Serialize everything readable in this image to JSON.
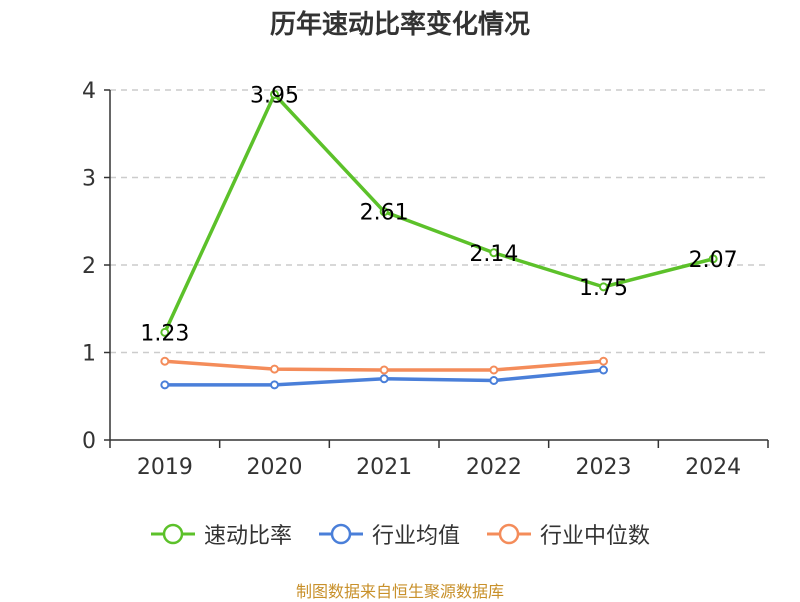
{
  "chart_data": {
    "type": "line",
    "title": "历年速动比率变化情况",
    "categories": [
      "2019",
      "2020",
      "2021",
      "2022",
      "2023",
      "2024"
    ],
    "ylim": [
      0,
      4
    ],
    "yticks": [
      "0",
      "1",
      "2",
      "3",
      "4"
    ],
    "grid": true,
    "legend_position": "bottom",
    "series": [
      {
        "name": "速动比率",
        "color": "#5cc12a",
        "values": [
          1.23,
          3.95,
          2.61,
          2.14,
          1.75,
          2.07
        ],
        "labels": [
          "1.23",
          "3.95",
          "2.61",
          "2.14",
          "1.75",
          "2.07"
        ]
      },
      {
        "name": "行业均值",
        "color": "#4a7fd9",
        "values": [
          0.63,
          0.63,
          0.7,
          0.68,
          0.8,
          null
        ]
      },
      {
        "name": "行业中位数",
        "color": "#f48c5a",
        "values": [
          0.9,
          0.81,
          0.8,
          0.8,
          0.9,
          null
        ]
      }
    ]
  },
  "source": "制图数据来自恒生聚源数据库"
}
